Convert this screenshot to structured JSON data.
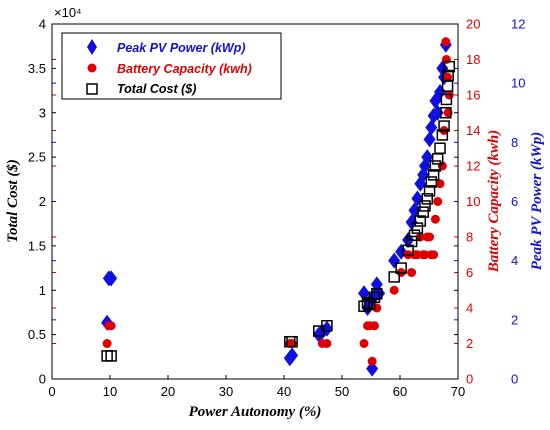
{
  "chart_data": {
    "type": "scatter",
    "title": "",
    "xlabel": "Power Autonomy (%)",
    "xlim": [
      0,
      70
    ],
    "x_ticks": [
      "0",
      "10",
      "20",
      "30",
      "40",
      "50",
      "60",
      "70"
    ],
    "axes": {
      "left": {
        "label": "Total Cost ($)",
        "lim": [
          0,
          40000
        ],
        "multiplier": "×10⁴",
        "ticks": [
          "0",
          "0.5",
          "1",
          "1.5",
          "2",
          "2.5",
          "3",
          "3.5",
          "4"
        ],
        "color": "#000000"
      },
      "right1": {
        "label": "Battery Capacity (kwh)",
        "lim": [
          0,
          20
        ],
        "ticks": [
          "0",
          "2",
          "4",
          "6",
          "8",
          "10",
          "12",
          "14",
          "16",
          "18",
          "20"
        ],
        "color": "#e00000"
      },
      "right2": {
        "label": "Peak PV Power (kWp)",
        "lim": [
          0,
          12
        ],
        "ticks": [
          "0",
          "2",
          "4",
          "6",
          "8",
          "10",
          "12"
        ],
        "color": "#1010e0"
      }
    },
    "legend": {
      "position": "top-left"
    },
    "series": [
      {
        "name": "Peak PV Power (kWp)",
        "axis": "right2",
        "marker": "diamond",
        "color": "#1010e0",
        "points": [
          [
            9.5,
            1.9
          ],
          [
            9.8,
            3.4
          ],
          [
            10.2,
            3.4
          ],
          [
            41.0,
            0.7
          ],
          [
            41.4,
            0.8
          ],
          [
            46.0,
            1.5
          ],
          [
            46.6,
            1.6
          ],
          [
            47.4,
            1.7
          ],
          [
            53.8,
            2.9
          ],
          [
            54.4,
            2.4
          ],
          [
            54.8,
            2.6
          ],
          [
            55.2,
            0.35
          ],
          [
            55.6,
            2.8
          ],
          [
            56.0,
            3.2
          ],
          [
            56.4,
            2.9
          ],
          [
            59.0,
            4.0
          ],
          [
            60.2,
            4.3
          ],
          [
            61.4,
            4.7
          ],
          [
            62.0,
            5.3
          ],
          [
            62.5,
            5.7
          ],
          [
            63.0,
            6.1
          ],
          [
            63.5,
            6.6
          ],
          [
            64.0,
            6.9
          ],
          [
            64.3,
            7.2
          ],
          [
            64.7,
            7.5
          ],
          [
            65.1,
            8.1
          ],
          [
            65.4,
            8.5
          ],
          [
            65.8,
            8.9
          ],
          [
            66.1,
            9.4
          ],
          [
            66.5,
            9.0
          ],
          [
            66.9,
            9.7
          ],
          [
            67.3,
            10.5
          ],
          [
            67.6,
            10.2
          ],
          [
            67.9,
            11.3
          ]
        ]
      },
      {
        "name": "Battery Capacity (kwh)",
        "axis": "right1",
        "marker": "circle",
        "color": "#e00000",
        "points": [
          [
            9.5,
            2.0
          ],
          [
            9.8,
            3.0
          ],
          [
            10.2,
            3.0
          ],
          [
            41.0,
            2.0
          ],
          [
            41.4,
            2.0
          ],
          [
            46.6,
            2.0
          ],
          [
            47.4,
            2.0
          ],
          [
            53.8,
            2.0
          ],
          [
            54.4,
            3.0
          ],
          [
            54.8,
            3.0
          ],
          [
            55.2,
            1.0
          ],
          [
            55.6,
            3.0
          ],
          [
            56.0,
            4.0
          ],
          [
            59.0,
            5.0
          ],
          [
            60.2,
            6.0
          ],
          [
            61.4,
            7.0
          ],
          [
            62.0,
            6.0
          ],
          [
            62.5,
            7.0
          ],
          [
            63.0,
            7.0
          ],
          [
            63.5,
            8.0
          ],
          [
            64.0,
            7.0
          ],
          [
            64.3,
            7.0
          ],
          [
            64.7,
            8.0
          ],
          [
            65.1,
            8.0
          ],
          [
            65.4,
            7.0
          ],
          [
            65.8,
            7.0
          ],
          [
            66.1,
            9.0
          ],
          [
            66.5,
            10.0
          ],
          [
            66.9,
            11.0
          ],
          [
            67.3,
            12.0
          ],
          [
            67.6,
            14.0
          ],
          [
            67.9,
            19.0
          ],
          [
            68.0,
            18.0
          ],
          [
            68.2,
            17.0
          ],
          [
            68.3,
            15.0
          ],
          [
            68.5,
            16.0
          ]
        ]
      },
      {
        "name": "Total Cost ($)",
        "axis": "left",
        "marker": "square",
        "color": "#000000",
        "points": [
          [
            9.5,
            2600
          ],
          [
            10.2,
            2600
          ],
          [
            41.0,
            4200
          ],
          [
            41.4,
            4200
          ],
          [
            46.0,
            5400
          ],
          [
            47.4,
            6000
          ],
          [
            53.8,
            8200
          ],
          [
            54.4,
            8600
          ],
          [
            54.8,
            8400
          ],
          [
            55.6,
            9200
          ],
          [
            56.0,
            9600
          ],
          [
            59.0,
            11500
          ],
          [
            60.2,
            12500
          ],
          [
            61.4,
            14500
          ],
          [
            62.0,
            15500
          ],
          [
            62.5,
            16200
          ],
          [
            63.0,
            17000
          ],
          [
            63.5,
            17800
          ],
          [
            64.0,
            18800
          ],
          [
            64.3,
            19500
          ],
          [
            64.7,
            20300
          ],
          [
            65.1,
            21200
          ],
          [
            65.4,
            22200
          ],
          [
            65.8,
            23000
          ],
          [
            66.1,
            24000
          ],
          [
            66.5,
            24800
          ],
          [
            66.9,
            26000
          ],
          [
            67.3,
            27500
          ],
          [
            67.6,
            28500
          ],
          [
            67.9,
            30000
          ],
          [
            68.0,
            31500
          ],
          [
            68.2,
            33000
          ],
          [
            68.3,
            34200
          ],
          [
            68.5,
            35200
          ]
        ]
      }
    ]
  }
}
